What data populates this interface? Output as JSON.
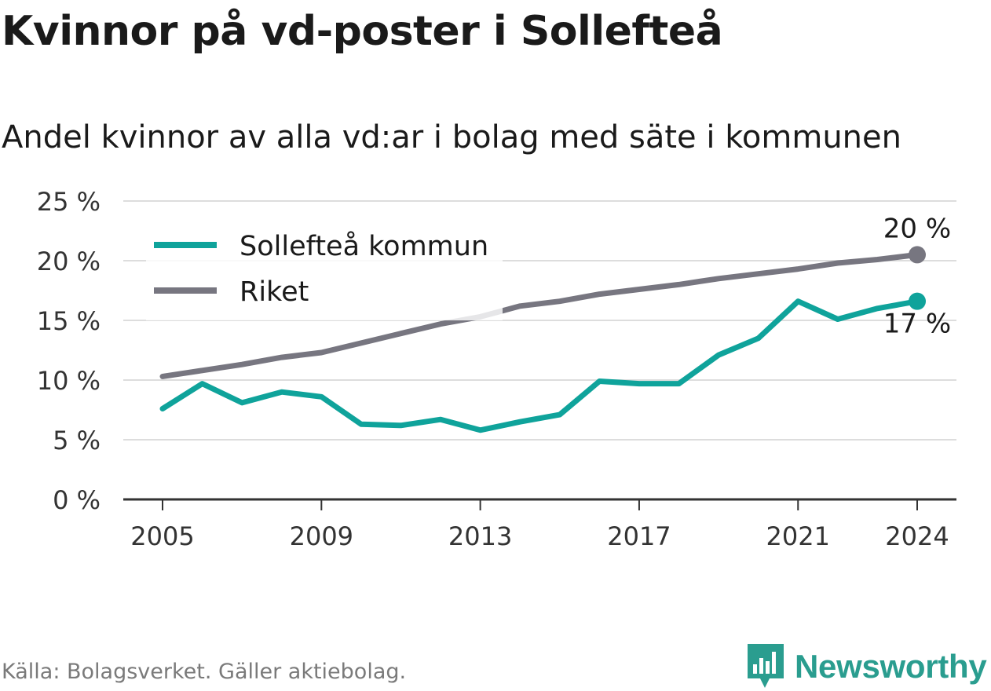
{
  "title": "Kvinnor på vd-poster i Sollefteå",
  "subtitle": "Andel kvinnor av alla vd:ar i bolag med säte i kommunen",
  "source": "Källa: Bolagsverket. Gäller aktiebolag.",
  "brand": "Newsworthy",
  "colors": {
    "solleftea": "#0fa39b",
    "riket": "#777680",
    "grid": "#dddddd",
    "axis": "#333333",
    "brand": "#2a9d8f"
  },
  "chart_data": {
    "type": "line",
    "x": [
      2005,
      2006,
      2007,
      2008,
      2009,
      2010,
      2011,
      2012,
      2013,
      2014,
      2015,
      2016,
      2017,
      2018,
      2019,
      2020,
      2021,
      2022,
      2023,
      2024
    ],
    "series": [
      {
        "name": "Sollefteå kommun",
        "color": "#0fa39b",
        "values": [
          7.6,
          9.7,
          8.1,
          9.0,
          8.6,
          6.3,
          6.2,
          6.7,
          5.8,
          6.5,
          7.1,
          9.9,
          9.7,
          9.7,
          12.1,
          13.5,
          16.6,
          15.1,
          16.0,
          16.6
        ],
        "end_label": "17 %"
      },
      {
        "name": "Riket",
        "color": "#777680",
        "values": [
          10.3,
          10.8,
          11.3,
          11.9,
          12.3,
          13.1,
          13.9,
          14.7,
          15.3,
          16.2,
          16.6,
          17.2,
          17.6,
          18.0,
          18.5,
          18.9,
          19.3,
          19.8,
          20.1,
          20.5
        ],
        "end_label": "20 %"
      }
    ],
    "y_ticks": [
      "0 %",
      "5 %",
      "10 %",
      "15 %",
      "20 %",
      "25 %"
    ],
    "y_tick_values": [
      0,
      5,
      10,
      15,
      20,
      25
    ],
    "x_ticks": [
      2005,
      2009,
      2013,
      2017,
      2021,
      2024
    ],
    "ylim": [
      0,
      25
    ],
    "xlim": [
      2004,
      2025
    ],
    "grid": true,
    "legend": "top-left"
  }
}
